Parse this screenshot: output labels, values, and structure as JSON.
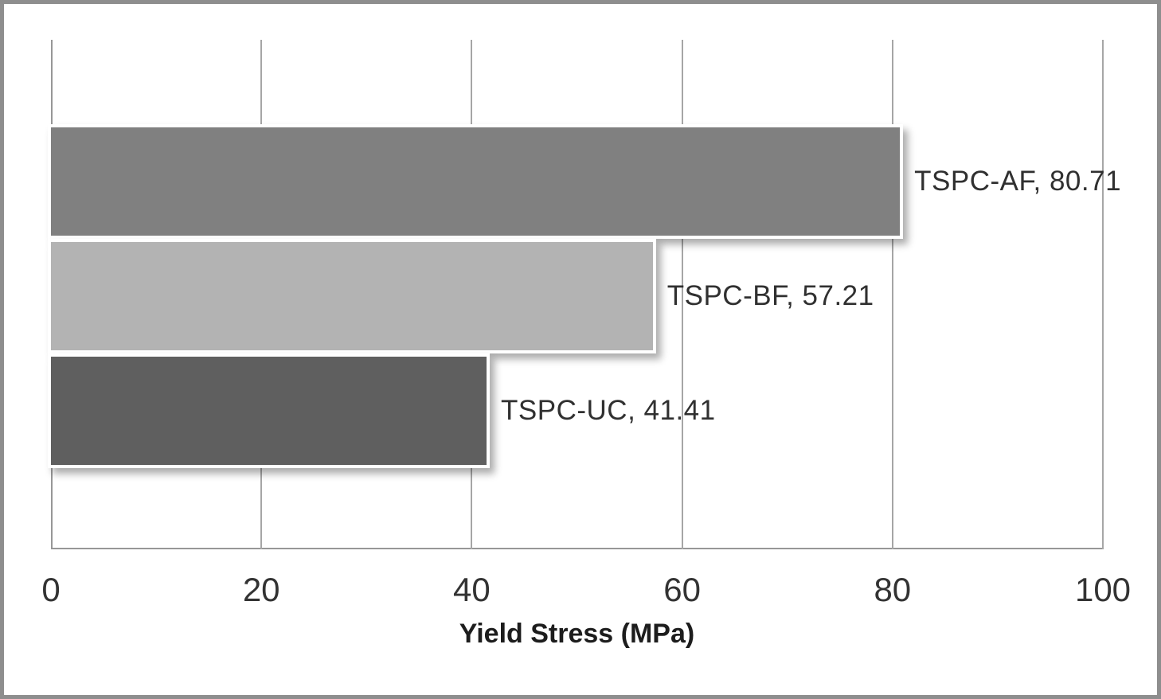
{
  "chart_data": {
    "type": "bar",
    "orientation": "horizontal",
    "title": "",
    "categories": [
      "TSPC-AF",
      "TSPC-BF",
      "TSPC-UC"
    ],
    "values": [
      80.71,
      57.21,
      41.41
    ],
    "data_labels": [
      "TSPC-AF, 80.71",
      "TSPC-BF, 57.21",
      "TSPC-UC, 41.41"
    ],
    "bar_colors": [
      "#808080",
      "#b3b3b3",
      "#5f5f5f"
    ],
    "xlabel": "Yield Stress (MPa)",
    "xticks": [
      "0",
      "20",
      "40",
      "60",
      "80",
      "100"
    ],
    "xtick_values": [
      0,
      20,
      40,
      60,
      80,
      100
    ],
    "xlim": [
      0,
      100
    ],
    "grid": "vertical-gridlines-on",
    "legend": "none",
    "background_color": "#ffffff",
    "frame_color": "#8e8e8e",
    "gridline_color": "#a6a6a6",
    "axis_line_color": "#979797",
    "text_color": "#333333"
  }
}
